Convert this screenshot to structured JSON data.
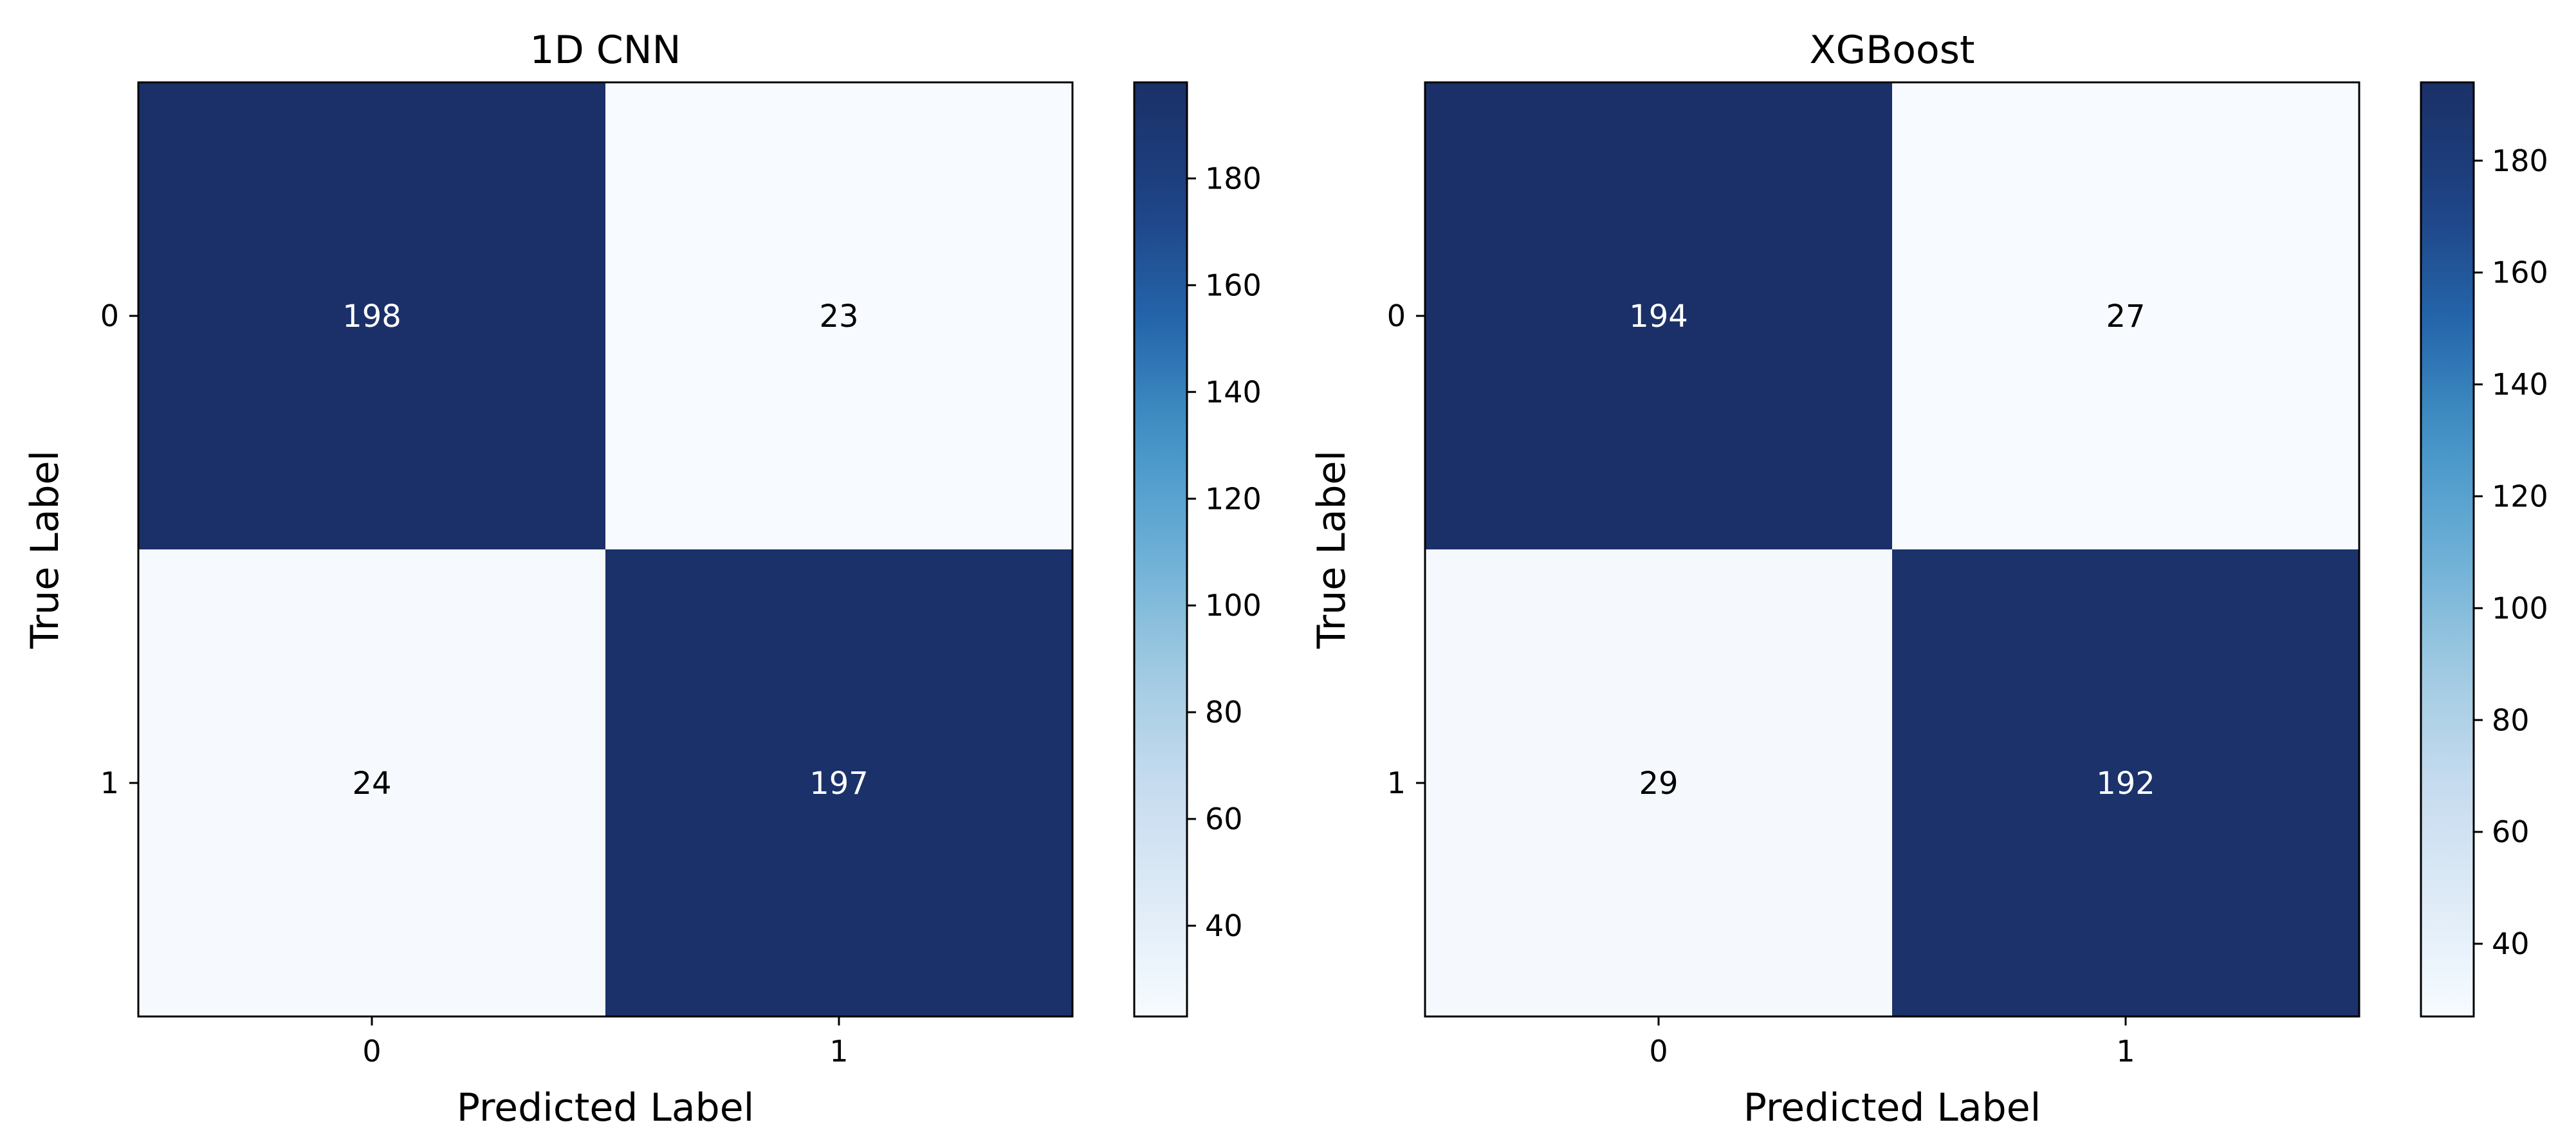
{
  "chart_data": [
    {
      "type": "heatmap",
      "title": "1D CNN",
      "xlabel": "Predicted Label",
      "ylabel": "True Label",
      "x_categories": [
        "0",
        "1"
      ],
      "y_categories": [
        "0",
        "1"
      ],
      "values": [
        [
          198,
          23
        ],
        [
          24,
          197
        ]
      ],
      "colorbar": {
        "min": 23,
        "max": 198,
        "ticks": [
          40,
          60,
          80,
          100,
          120,
          140,
          160,
          180
        ]
      },
      "colormap": "Blues"
    },
    {
      "type": "heatmap",
      "title": "XGBoost",
      "xlabel": "Predicted Label",
      "ylabel": "True Label",
      "x_categories": [
        "0",
        "1"
      ],
      "y_categories": [
        "0",
        "1"
      ],
      "values": [
        [
          194,
          27
        ],
        [
          29,
          192
        ]
      ],
      "colorbar": {
        "min": 27,
        "max": 194,
        "ticks": [
          40,
          60,
          80,
          100,
          120,
          140,
          160,
          180
        ]
      },
      "colormap": "Blues"
    }
  ],
  "colors": {
    "low": "#f7fbff",
    "high": "#1b3068",
    "light_text": "#ffffff",
    "dark_text": "#000000"
  }
}
